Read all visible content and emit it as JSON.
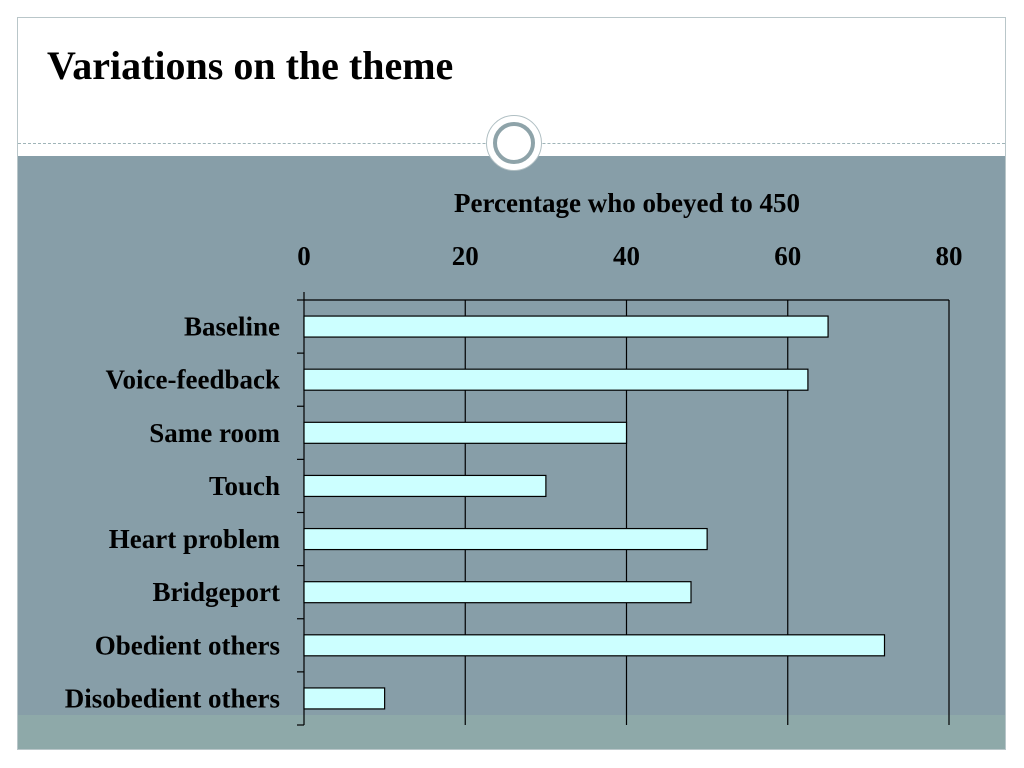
{
  "slide": {
    "title": "Variations on the theme",
    "colors": {
      "content_band": "#879ea8",
      "footer_band": "#8ea9a9",
      "bar_fill": "#ccffff",
      "bar_stroke": "#000000"
    }
  },
  "chart_data": {
    "type": "bar",
    "orientation": "horizontal",
    "title": "Percentage who obeyed to 450",
    "xlabel": "",
    "ylabel": "",
    "categories": [
      "Baseline",
      "Voice-feedback",
      "Same room",
      "Touch",
      "Heart problem",
      "Bridgeport",
      "Obedient others",
      "Disobedient others"
    ],
    "values": [
      65,
      62.5,
      40,
      30,
      50,
      48,
      72,
      10
    ],
    "xlim": [
      0,
      80
    ],
    "xticks": [
      0,
      20,
      40,
      60,
      80
    ],
    "x_axis_position": "top",
    "grid": true,
    "legend": "none"
  }
}
